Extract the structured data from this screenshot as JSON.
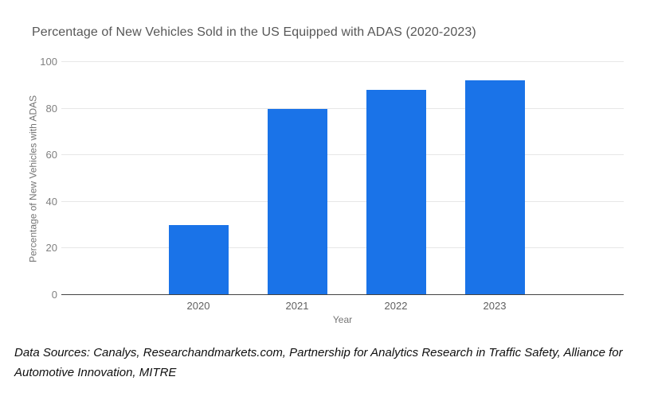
{
  "chart": {
    "title": "Percentage of New Vehicles Sold in the US Equipped with ADAS (2020-2023)",
    "y_axis_title": "Percentage of New Vehicles with ADAS",
    "x_axis_title": "Year"
  },
  "chart_data": {
    "type": "bar",
    "categories": [
      "2020",
      "2021",
      "2022",
      "2023"
    ],
    "values": [
      30,
      80,
      88,
      92
    ],
    "title": "Percentage of New Vehicles Sold in the US Equipped with ADAS (2020-2023)",
    "xlabel": "Year",
    "ylabel": "Percentage of New Vehicles with ADAS",
    "ylim": [
      0,
      100
    ],
    "yticks": [
      0,
      20,
      40,
      60,
      80,
      100
    ],
    "grid": true,
    "legend_position": "none",
    "bar_color": "#1a73e8"
  },
  "colors": {
    "bar": "#1a73e8",
    "gridline": "#e7e7e7",
    "axis_line": "#424242",
    "y_tick_text": "#808080",
    "x_tick_text": "#5f5f5f",
    "axis_title_text": "#757575",
    "title_text": "#575757",
    "footer_text": "#0f0f0f",
    "background": "#ffffff"
  },
  "footer": {
    "text": "Data Sources: Canalys, Researchandmarkets.com, Partnership for Analytics Research in Traffic Safety, Alliance for Automotive Innovation, MITRE"
  }
}
